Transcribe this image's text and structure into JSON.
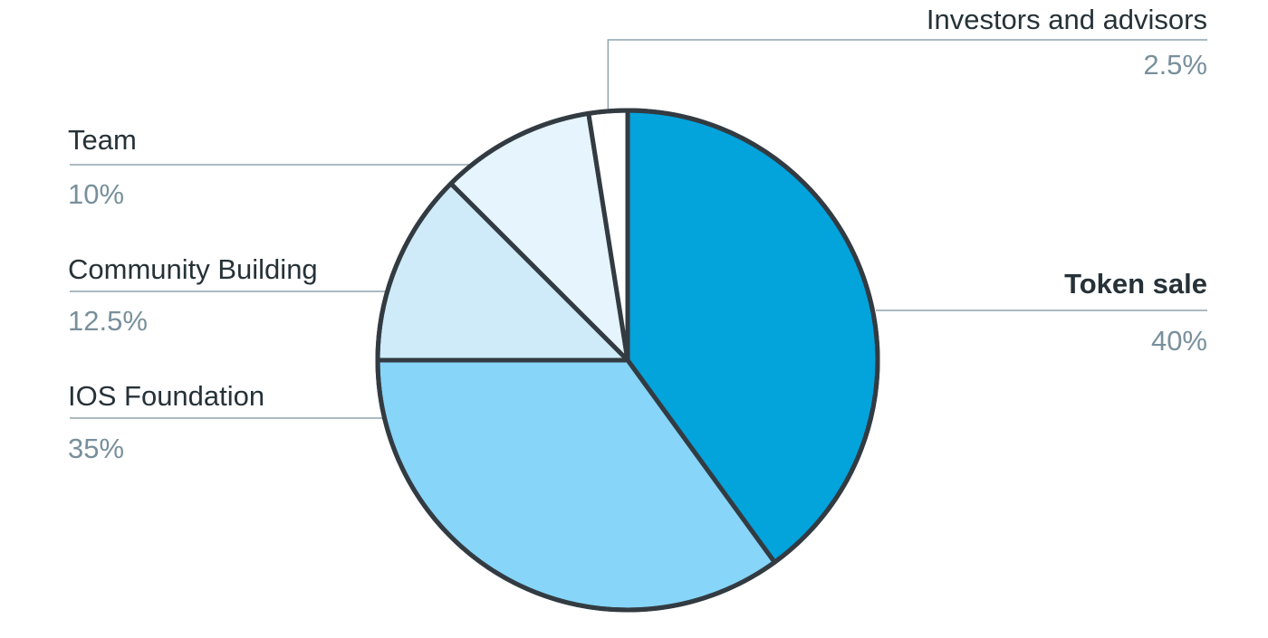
{
  "chart_data": {
    "type": "pie",
    "title": "",
    "categories": [
      "Token sale",
      "IOS Foundation",
      "Community Building",
      "Team",
      "Investors and advisors"
    ],
    "values": [
      40,
      35,
      12.5,
      10,
      2.5
    ],
    "value_labels": [
      "40%",
      "35%",
      "12.5%",
      "10%",
      "2.5%"
    ],
    "colors": [
      "#03a3dc",
      "#87d5f8",
      "#cfebfa",
      "#e5f4fd",
      "#ffffff"
    ],
    "edge_color": "#333b42",
    "start": "12 o'clock",
    "direction": "clockwise",
    "legend": "none (leader-line labels)"
  }
}
